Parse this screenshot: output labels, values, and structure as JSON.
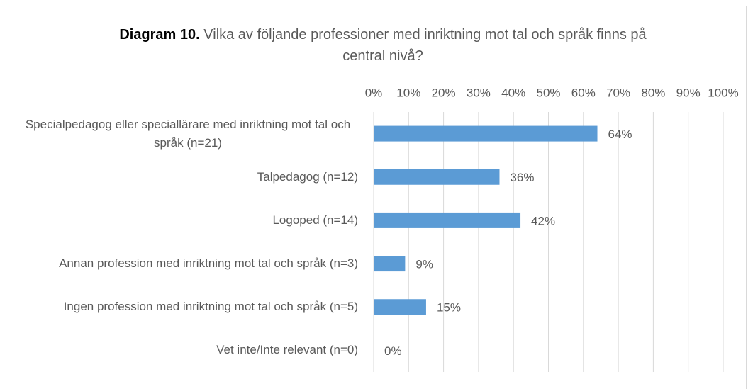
{
  "chart_data": {
    "type": "bar",
    "orientation": "horizontal",
    "title_prefix": "Diagram 10.",
    "title": "Vilka av följande professioner med inriktning mot tal och språk finns på central nivå?",
    "categories": [
      "Specialpedagog eller speciallärare med inriktning mot tal och språk (n=21)",
      "Talpedagog (n=12)",
      "Logoped (n=14)",
      "Annan profession med inriktning mot tal och språk (n=3)",
      "Ingen profession med inriktning mot tal och språk (n=5)",
      "Vet inte/Inte relevant (n=0)"
    ],
    "values": [
      64,
      36,
      42,
      9,
      15,
      0
    ],
    "value_labels": [
      "64%",
      "36%",
      "42%",
      "9%",
      "15%",
      "0%"
    ],
    "color": "#5b9bd5",
    "xlim": [
      0,
      100
    ],
    "xticks": [
      {
        "value": 0,
        "label": "0%"
      },
      {
        "value": 10,
        "label": "10%"
      },
      {
        "value": 20,
        "label": "20%"
      },
      {
        "value": 30,
        "label": "30%"
      },
      {
        "value": 40,
        "label": "40%"
      },
      {
        "value": 50,
        "label": "50%"
      },
      {
        "value": 60,
        "label": "60%"
      },
      {
        "value": 70,
        "label": "70%"
      },
      {
        "value": 80,
        "label": "80%"
      },
      {
        "value": 90,
        "label": "90%"
      },
      {
        "value": 100,
        "label": "100%"
      }
    ],
    "grid": true
  }
}
